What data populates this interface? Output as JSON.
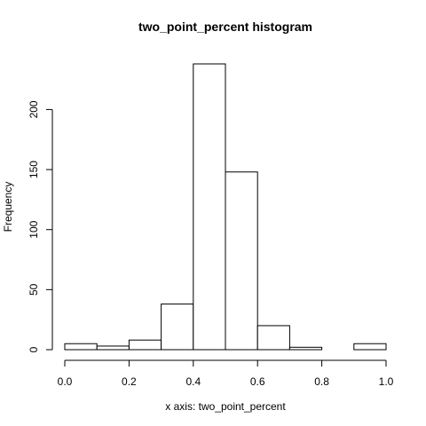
{
  "chart_data": {
    "type": "bar",
    "title": "two_point_percent histogram",
    "xlabel": "x axis: two_point_percent",
    "ylabel": "Frequency",
    "bins": [
      {
        "from": 0.0,
        "to": 0.1,
        "count": 5
      },
      {
        "from": 0.1,
        "to": 0.2,
        "count": 3
      },
      {
        "from": 0.2,
        "to": 0.3,
        "count": 8
      },
      {
        "from": 0.3,
        "to": 0.4,
        "count": 38
      },
      {
        "from": 0.4,
        "to": 0.5,
        "count": 238
      },
      {
        "from": 0.5,
        "to": 0.6,
        "count": 148
      },
      {
        "from": 0.6,
        "to": 0.7,
        "count": 20
      },
      {
        "from": 0.7,
        "to": 0.8,
        "count": 2
      },
      {
        "from": 0.8,
        "to": 0.9,
        "count": 0
      },
      {
        "from": 0.9,
        "to": 1.0,
        "count": 5
      }
    ],
    "xlim": [
      0.0,
      1.0
    ],
    "ylim": [
      0,
      238
    ],
    "x_ticks": [
      "0.0",
      "0.2",
      "0.4",
      "0.6",
      "0.8",
      "1.0"
    ],
    "y_ticks": [
      "0",
      "50",
      "100",
      "150",
      "200"
    ],
    "grid": false,
    "legend": "none",
    "colors": {
      "fill": "#ffffff",
      "stroke": "#000000"
    }
  }
}
